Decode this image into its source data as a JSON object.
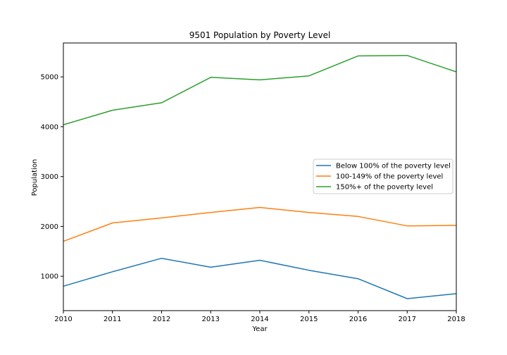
{
  "chart_data": {
    "type": "line",
    "title": "9501 Population by Poverty Level",
    "xlabel": "Year",
    "ylabel": "Population",
    "x": [
      2010,
      2011,
      2012,
      2013,
      2014,
      2015,
      2016,
      2017,
      2018
    ],
    "xlim": [
      2010,
      2018
    ],
    "ylim": [
      310,
      5680
    ],
    "yticks": [
      1000,
      2000,
      3000,
      4000,
      5000
    ],
    "grid": false,
    "legend_position": "center-right",
    "series": [
      {
        "name": "Below 100% of the poverty level",
        "color": "#1f77b4",
        "values": [
          800,
          1090,
          1360,
          1180,
          1320,
          1120,
          950,
          550,
          650
        ]
      },
      {
        "name": "100-149% of the poverty level",
        "color": "#ff7f0e",
        "values": [
          1700,
          2070,
          2170,
          2280,
          2380,
          2280,
          2200,
          2010,
          2020
        ]
      },
      {
        "name": "150%+ of the poverty level",
        "color": "#2ca02c",
        "values": [
          4040,
          4330,
          4480,
          4990,
          4940,
          5020,
          5420,
          5430,
          5100
        ]
      }
    ]
  }
}
